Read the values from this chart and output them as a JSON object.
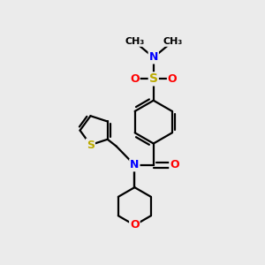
{
  "background_color": "#ebebeb",
  "bond_color": "#000000",
  "bond_width": 1.6,
  "atom_colors": {
    "N": "#0000ff",
    "O": "#ff0000",
    "S": "#bbaa00",
    "C": "#000000"
  },
  "font_size": 9,
  "figsize": [
    3.0,
    3.0
  ],
  "dpi": 100,
  "xlim": [
    0,
    10
  ],
  "ylim": [
    0,
    10
  ]
}
